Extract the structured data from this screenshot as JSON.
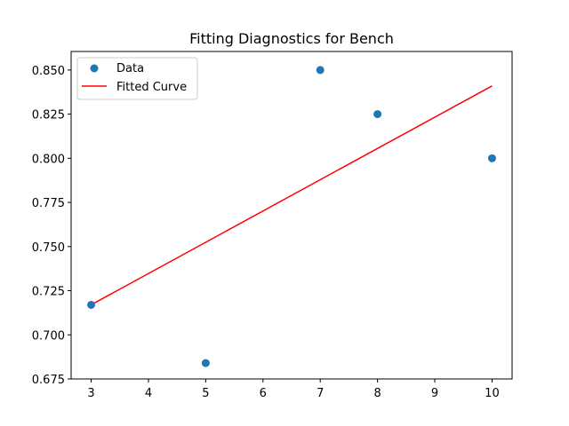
{
  "chart_data": {
    "type": "scatter",
    "title": "Fitting Diagnostics for Bench",
    "xlabel": "",
    "ylabel": "",
    "xlim": [
      2.65,
      10.35
    ],
    "ylim": [
      0.675,
      0.8605
    ],
    "x_ticks": [
      3,
      4,
      5,
      6,
      7,
      8,
      9,
      10
    ],
    "y_ticks": [
      0.675,
      0.7,
      0.725,
      0.75,
      0.775,
      0.8,
      0.825,
      0.85
    ],
    "grid": false,
    "legend_position": "top-left",
    "series": [
      {
        "name": "Data",
        "kind": "scatter",
        "color": "#1f77b4",
        "x": [
          3,
          5,
          7,
          8,
          10
        ],
        "y": [
          0.717,
          0.684,
          0.85,
          0.825,
          0.8
        ]
      },
      {
        "name": "Fitted Curve",
        "kind": "line",
        "color": "#ff0000",
        "x": [
          3,
          10
        ],
        "y": [
          0.717,
          0.841
        ]
      }
    ]
  }
}
